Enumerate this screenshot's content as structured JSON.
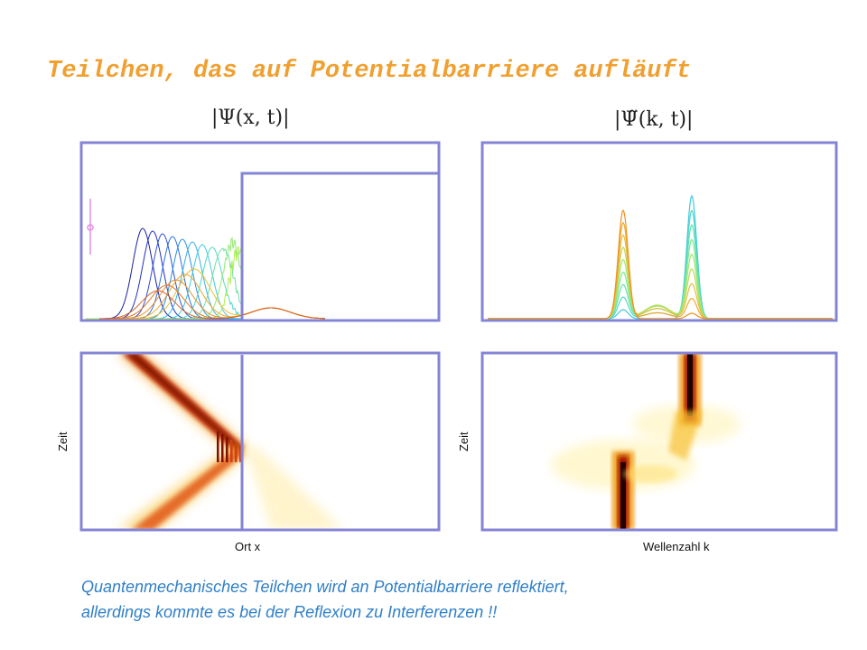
{
  "title": "Teilchen, das auf Potentialbarriere aufläuft",
  "panels": {
    "psi_x_label": "|Ψ(x, t)|",
    "psi_k_label": "|Ψ̃(k, t)|"
  },
  "axes": {
    "zeit_left": "Zeit",
    "zeit_right": "Zeit",
    "ort": "Ort x",
    "wellenzahl": "Wellenzahl k"
  },
  "caption": {
    "line1": "Quantenmechanisches Teilchen wird an Potentialbarriere reflektiert,",
    "line2": "allerdings kommte es bei der Reflexion zu Interferenzen !!"
  },
  "colors": {
    "frame": "#8484d6",
    "title": "#f0a030",
    "caption": "#2f7fc8"
  }
}
